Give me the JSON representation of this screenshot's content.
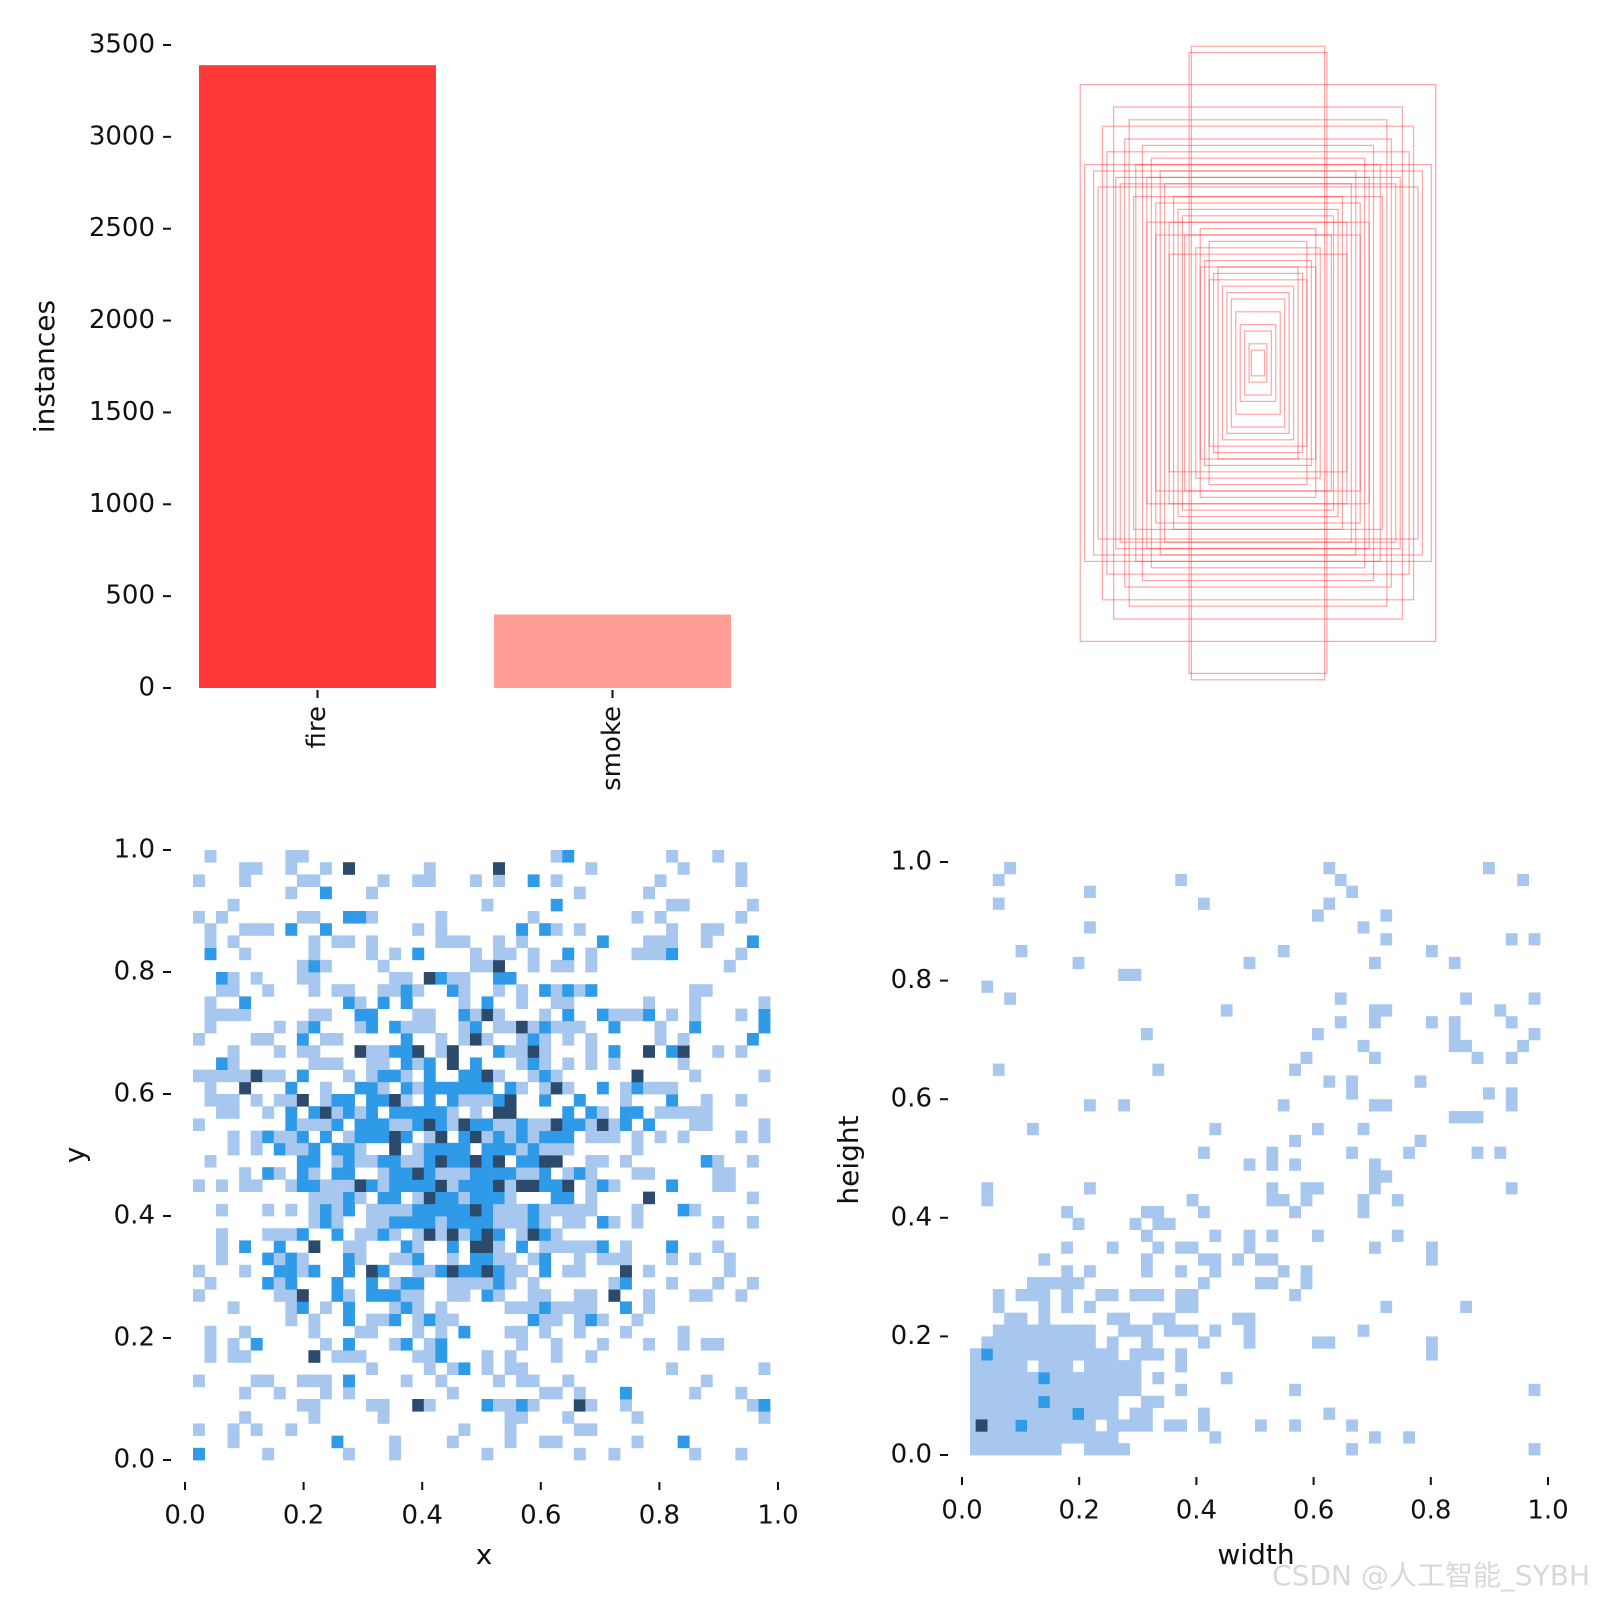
{
  "watermark": "CSDN @人工智能_SYBH",
  "colors": {
    "fire": "#ff3838",
    "smoke": "#ff9d97",
    "box_stroke": "#ff3838",
    "hist_light": "#a7c7ee",
    "hist_mid": "#2f9be8",
    "hist_dark": "#2c4a6b"
  },
  "chart_data": [
    {
      "id": "instances",
      "type": "bar",
      "categories": [
        "fire",
        "smoke"
      ],
      "values": [
        3390,
        400
      ],
      "ylabel": "instances",
      "ylim": [
        0,
        3500
      ],
      "yticks": [
        "0",
        "500",
        "1000",
        "1500",
        "2000",
        "2500",
        "3000",
        "3500"
      ]
    },
    {
      "id": "boxes",
      "type": "scatter",
      "description_shown": "overlaid bounding-box outlines centered on one point",
      "boxes_wh": [
        [
          0.8,
          0.87
        ],
        [
          0.78,
          0.62
        ],
        [
          0.72,
          0.55
        ],
        [
          0.65,
          0.8
        ],
        [
          0.6,
          0.7
        ],
        [
          0.55,
          0.62
        ],
        [
          0.5,
          0.58
        ],
        [
          0.46,
          0.5
        ],
        [
          0.42,
          0.56
        ],
        [
          0.4,
          0.44
        ],
        [
          0.36,
          0.48
        ],
        [
          0.33,
          0.4
        ],
        [
          0.3,
          0.99
        ],
        [
          0.31,
          0.97
        ],
        [
          0.28,
          0.36
        ],
        [
          0.26,
          0.42
        ],
        [
          0.24,
          0.32
        ],
        [
          0.22,
          0.38
        ],
        [
          0.2,
          0.28
        ],
        [
          0.18,
          0.3
        ],
        [
          0.16,
          0.24
        ],
        [
          0.14,
          0.22
        ],
        [
          0.12,
          0.2
        ],
        [
          0.1,
          0.16
        ],
        [
          0.08,
          0.12
        ],
        [
          0.06,
          0.1
        ],
        [
          0.04,
          0.06
        ],
        [
          0.03,
          0.04
        ],
        [
          0.68,
          0.66
        ],
        [
          0.58,
          0.76
        ],
        [
          0.52,
          0.68
        ],
        [
          0.48,
          0.64
        ],
        [
          0.44,
          0.6
        ],
        [
          0.38,
          0.52
        ],
        [
          0.34,
          0.46
        ],
        [
          0.26,
          0.3
        ],
        [
          0.22,
          0.26
        ],
        [
          0.74,
          0.6
        ],
        [
          0.62,
          0.56
        ],
        [
          0.56,
          0.52
        ],
        [
          0.7,
          0.74
        ],
        [
          0.64,
          0.58
        ],
        [
          0.5,
          0.44
        ],
        [
          0.46,
          0.4
        ],
        [
          0.4,
          0.34
        ]
      ]
    },
    {
      "id": "xy",
      "type": "heatmap",
      "xlabel": "x",
      "ylabel": "y",
      "xlim": [
        0,
        1
      ],
      "ylim": [
        0,
        1
      ],
      "xticks": [
        "0.0",
        "0.2",
        "0.4",
        "0.6",
        "0.8",
        "1.0"
      ],
      "yticks": [
        "0.0",
        "0.2",
        "0.4",
        "0.6",
        "0.8",
        "1.0"
      ],
      "bins": 50,
      "distribution": {
        "center": [
          0.45,
          0.5
        ],
        "spread": [
          0.22,
          0.2
        ],
        "max_count_level": 3
      }
    },
    {
      "id": "wh",
      "type": "heatmap",
      "xlabel": "width",
      "ylabel": "height",
      "xlim": [
        0,
        1
      ],
      "ylim": [
        0,
        1
      ],
      "xticks": [
        "0.0",
        "0.2",
        "0.4",
        "0.6",
        "0.8",
        "1.0"
      ],
      "yticks": [
        "0.0",
        "0.2",
        "0.4",
        "0.6",
        "0.8",
        "1.0"
      ],
      "bins": 50,
      "distribution": {
        "concentrated_near": [
          0.03,
          0.03
        ],
        "max_count_level": 3
      }
    }
  ]
}
